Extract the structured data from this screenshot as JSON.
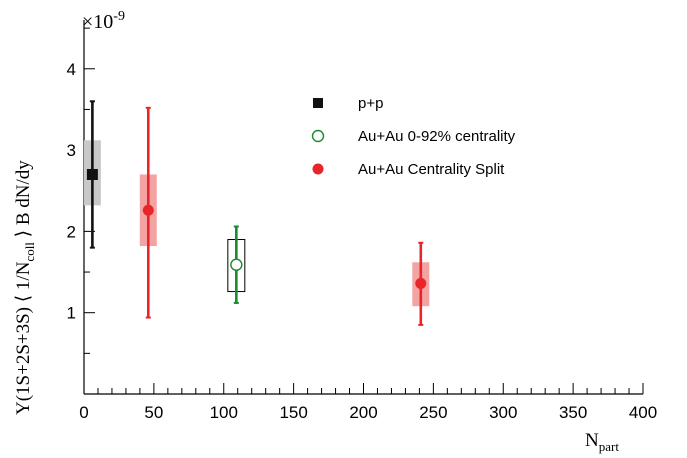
{
  "chart_data": {
    "type": "scatter",
    "xlabel": "N",
    "xlabel_sub": "part",
    "ylabel": "Υ(1S+2S+3S) ⟨ 1/N",
    "ylabel_sub": "coll",
    "ylabel_suffix": " ⟩ B dN/dy",
    "y_exponent_label": "×10",
    "y_exponent_power": "-9",
    "xlim": [
      0,
      400
    ],
    "ylim": [
      0,
      4.6
    ],
    "x_ticks": [
      0,
      50,
      100,
      150,
      200,
      250,
      300,
      350,
      400
    ],
    "x_tick_labels": [
      "0",
      "50",
      "100",
      "150",
      "200",
      "250",
      "300",
      "350",
      "400"
    ],
    "y_ticks": [
      1,
      2,
      3,
      4
    ],
    "y_tick_labels": [
      "1",
      "2",
      "3",
      "4"
    ],
    "legend_position": "top-center",
    "series": [
      {
        "name": "p+p",
        "marker": "filled-square",
        "color": "#111111",
        "sys_fill": "#c8c8c8",
        "sys_style": "filled",
        "points": [
          {
            "x": 6,
            "y": 2.7,
            "stat_low": 1.8,
            "stat_high": 3.6,
            "sys_low": 2.32,
            "sys_high": 3.12,
            "sys_half_width": 5
          }
        ]
      },
      {
        "name": "Au+Au 0-92% centrality",
        "marker": "open-circle",
        "color": "#1a8a2e",
        "sys_fill": "none",
        "sys_style": "open",
        "points": [
          {
            "x": 109,
            "y": 1.59,
            "stat_low": 1.12,
            "stat_high": 2.06,
            "sys_low": 1.26,
            "sys_high": 1.9,
            "sys_half_width": 5
          }
        ]
      },
      {
        "name": "Au+Au Centrality Split",
        "marker": "filled-circle",
        "color": "#e8262a",
        "sys_fill": "#f4a3a3",
        "sys_style": "filled",
        "points": [
          {
            "x": 46,
            "y": 2.26,
            "stat_low": 0.94,
            "stat_high": 3.52,
            "sys_low": 1.82,
            "sys_high": 2.7,
            "sys_half_width": 5
          },
          {
            "x": 241,
            "y": 1.36,
            "stat_low": 0.85,
            "stat_high": 1.86,
            "sys_low": 1.08,
            "sys_high": 1.62,
            "sys_half_width": 5
          }
        ]
      }
    ]
  }
}
